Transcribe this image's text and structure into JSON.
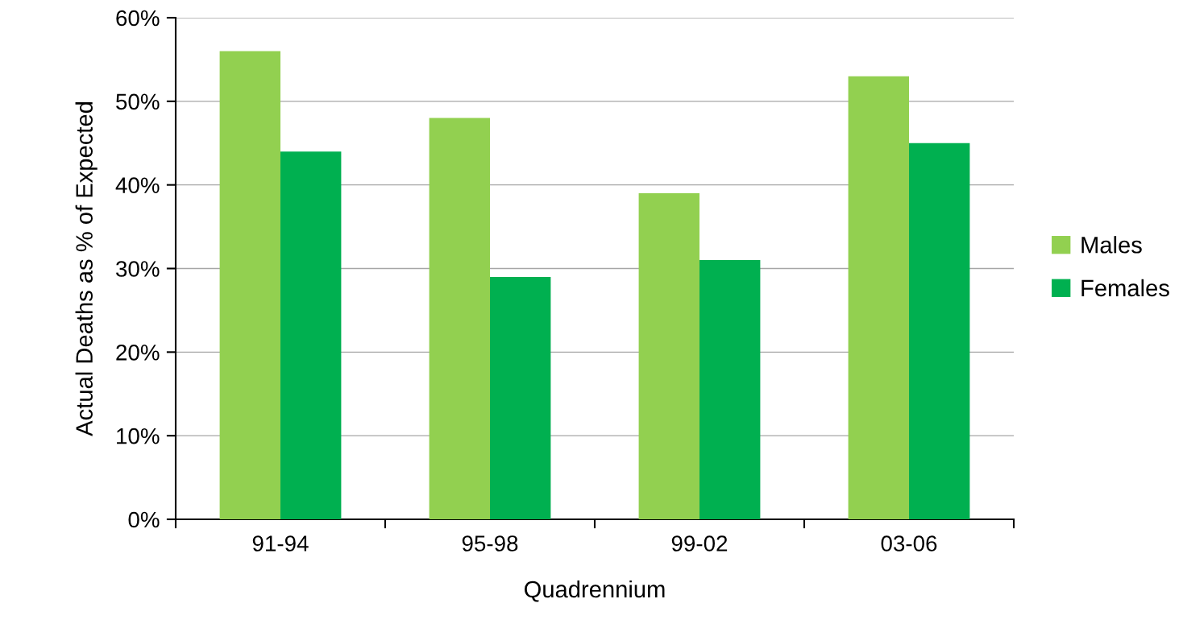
{
  "chart_data": {
    "type": "bar",
    "xlabel": "Quadrennium",
    "ylabel": "Actual Deaths as % of Expected",
    "categories": [
      "91-94",
      "95-98",
      "99-02",
      "03-06"
    ],
    "series": [
      {
        "name": "Males",
        "color": "#92d050",
        "values": [
          56,
          48,
          39,
          53
        ]
      },
      {
        "name": "Females",
        "color": "#00b050",
        "values": [
          44,
          29,
          31,
          45
        ]
      }
    ],
    "ylim": [
      0,
      60
    ],
    "yticks": [
      {
        "value": 0,
        "label": "0%"
      },
      {
        "value": 10,
        "label": "10%"
      },
      {
        "value": 20,
        "label": "20%"
      },
      {
        "value": 30,
        "label": "30%"
      },
      {
        "value": 40,
        "label": "40%"
      },
      {
        "value": 50,
        "label": "50%"
      },
      {
        "value": 60,
        "label": "60%"
      }
    ],
    "grid": "y",
    "legend": "right"
  }
}
